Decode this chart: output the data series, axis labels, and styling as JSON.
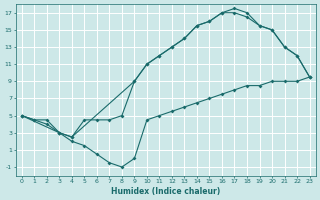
{
  "background_color": "#cde8e8",
  "grid_color": "#b8d8d8",
  "line_color": "#1a6b6b",
  "xlabel": "Humidex (Indice chaleur)",
  "xlim": [
    -0.5,
    23.5
  ],
  "ylim": [
    -2,
    18
  ],
  "xticks": [
    0,
    1,
    2,
    3,
    4,
    5,
    6,
    7,
    8,
    9,
    10,
    11,
    12,
    13,
    14,
    15,
    16,
    17,
    18,
    19,
    20,
    21,
    22,
    23
  ],
  "yticks": [
    -1,
    1,
    3,
    5,
    7,
    9,
    11,
    13,
    15,
    17
  ],
  "line1_x": [
    0,
    1,
    2,
    3,
    4,
    5,
    6,
    7,
    8,
    9,
    10,
    11,
    12,
    13,
    14,
    15,
    16,
    17,
    18,
    19,
    20,
    21,
    22,
    23
  ],
  "line1_y": [
    5,
    4.5,
    4.5,
    3,
    2.5,
    4.5,
    4.5,
    4.5,
    5,
    9,
    11,
    12,
    13,
    14,
    15.5,
    16,
    17,
    17,
    16.5,
    15.5,
    15,
    13,
    12,
    9.5
  ],
  "line2_x": [
    0,
    1,
    2,
    3,
    4,
    5,
    6,
    7,
    8,
    9,
    10,
    11,
    12,
    13,
    14,
    15,
    16,
    17,
    18,
    19,
    20,
    21,
    22,
    23
  ],
  "line2_y": [
    5,
    4.5,
    4,
    3,
    2,
    1.5,
    0.5,
    -0.5,
    -1,
    0,
    4.5,
    5,
    5.5,
    6,
    6.5,
    7,
    7.5,
    8,
    8.5,
    8.5,
    9,
    9,
    9,
    9.5
  ],
  "line3_x": [
    0,
    3,
    4,
    9,
    10,
    11,
    12,
    13,
    14,
    15,
    16,
    17,
    18,
    19,
    20,
    21,
    22,
    23
  ],
  "line3_y": [
    5,
    3,
    2.5,
    9,
    11,
    12,
    13,
    14,
    15.5,
    16,
    17,
    17.5,
    17,
    15.5,
    15,
    13,
    12,
    9.5
  ]
}
